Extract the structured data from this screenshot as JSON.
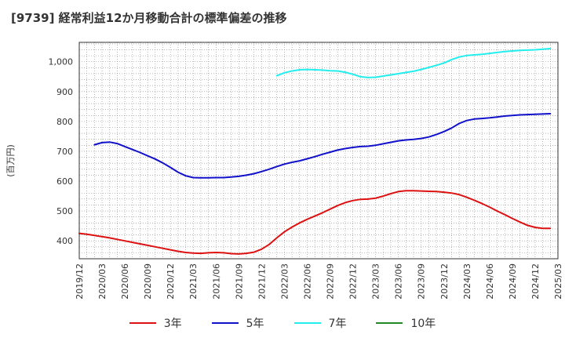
{
  "chart_data": {
    "type": "line",
    "title": "[9739]  経常利益12か月移動合計の標準偏差の推移",
    "ylabel": "(百万円)",
    "xlabel": "",
    "ylim": [
      340,
      1065
    ],
    "yticks": [
      400,
      500,
      600,
      700,
      800,
      900,
      1000
    ],
    "ytick_labels": [
      "400",
      "500",
      "600",
      "700",
      "800",
      "900",
      "1,000"
    ],
    "x_range": [
      "2019-12",
      "2025-03"
    ],
    "xtick_labels": [
      "2019/12",
      "2020/03",
      "2020/06",
      "2020/09",
      "2020/12",
      "2021/03",
      "2021/06",
      "2021/09",
      "2021/12",
      "2022/03",
      "2022/06",
      "2022/09",
      "2022/12",
      "2023/03",
      "2023/06",
      "2023/09",
      "2023/12",
      "2024/03",
      "2024/06",
      "2024/09",
      "2024/12",
      "2025/03"
    ],
    "grid": true,
    "legend_position": "bottom",
    "series": [
      {
        "name": "3年",
        "color": "#dd1111",
        "points": [
          [
            "2019-12",
            425
          ],
          [
            "2020-01",
            422
          ],
          [
            "2020-02",
            418
          ],
          [
            "2020-03",
            414
          ],
          [
            "2020-04",
            410
          ],
          [
            "2020-05",
            405
          ],
          [
            "2020-06",
            400
          ],
          [
            "2020-07",
            395
          ],
          [
            "2020-08",
            390
          ],
          [
            "2020-09",
            385
          ],
          [
            "2020-10",
            380
          ],
          [
            "2020-11",
            375
          ],
          [
            "2020-12",
            370
          ],
          [
            "2021-01",
            365
          ],
          [
            "2021-02",
            361
          ],
          [
            "2021-03",
            359
          ],
          [
            "2021-04",
            358
          ],
          [
            "2021-05",
            360
          ],
          [
            "2021-06",
            361
          ],
          [
            "2021-07",
            360
          ],
          [
            "2021-08",
            357
          ],
          [
            "2021-09",
            356
          ],
          [
            "2021-10",
            358
          ],
          [
            "2021-11",
            362
          ],
          [
            "2021-12",
            372
          ],
          [
            "2022-01",
            388
          ],
          [
            "2022-02",
            410
          ],
          [
            "2022-03",
            430
          ],
          [
            "2022-04",
            446
          ],
          [
            "2022-05",
            460
          ],
          [
            "2022-06",
            472
          ],
          [
            "2022-07",
            483
          ],
          [
            "2022-08",
            494
          ],
          [
            "2022-09",
            506
          ],
          [
            "2022-10",
            518
          ],
          [
            "2022-11",
            528
          ],
          [
            "2022-12",
            535
          ],
          [
            "2023-01",
            539
          ],
          [
            "2023-02",
            540
          ],
          [
            "2023-03",
            543
          ],
          [
            "2023-04",
            550
          ],
          [
            "2023-05",
            558
          ],
          [
            "2023-06",
            565
          ],
          [
            "2023-07",
            568
          ],
          [
            "2023-08",
            568
          ],
          [
            "2023-09",
            567
          ],
          [
            "2023-10",
            566
          ],
          [
            "2023-11",
            565
          ],
          [
            "2023-12",
            563
          ],
          [
            "2024-01",
            560
          ],
          [
            "2024-02",
            555
          ],
          [
            "2024-03",
            546
          ],
          [
            "2024-04",
            536
          ],
          [
            "2024-05",
            525
          ],
          [
            "2024-06",
            513
          ],
          [
            "2024-07",
            500
          ],
          [
            "2024-08",
            488
          ],
          [
            "2024-09",
            475
          ],
          [
            "2024-10",
            463
          ],
          [
            "2024-11",
            452
          ],
          [
            "2024-12",
            445
          ],
          [
            "2025-01",
            442
          ],
          [
            "2025-02",
            442
          ]
        ]
      },
      {
        "name": "5年",
        "color": "#1111cc",
        "points": [
          [
            "2020-02",
            722
          ],
          [
            "2020-03",
            729
          ],
          [
            "2020-04",
            731
          ],
          [
            "2020-05",
            726
          ],
          [
            "2020-06",
            716
          ],
          [
            "2020-07",
            706
          ],
          [
            "2020-08",
            696
          ],
          [
            "2020-09",
            685
          ],
          [
            "2020-10",
            674
          ],
          [
            "2020-11",
            661
          ],
          [
            "2020-12",
            646
          ],
          [
            "2021-01",
            630
          ],
          [
            "2021-02",
            618
          ],
          [
            "2021-03",
            612
          ],
          [
            "2021-04",
            611
          ],
          [
            "2021-05",
            611
          ],
          [
            "2021-06",
            612
          ],
          [
            "2021-07",
            612
          ],
          [
            "2021-08",
            614
          ],
          [
            "2021-09",
            616
          ],
          [
            "2021-10",
            620
          ],
          [
            "2021-11",
            625
          ],
          [
            "2021-12",
            632
          ],
          [
            "2022-01",
            640
          ],
          [
            "2022-02",
            649
          ],
          [
            "2022-03",
            657
          ],
          [
            "2022-04",
            663
          ],
          [
            "2022-05",
            668
          ],
          [
            "2022-06",
            675
          ],
          [
            "2022-07",
            682
          ],
          [
            "2022-08",
            690
          ],
          [
            "2022-09",
            697
          ],
          [
            "2022-10",
            704
          ],
          [
            "2022-11",
            709
          ],
          [
            "2022-12",
            713
          ],
          [
            "2023-01",
            716
          ],
          [
            "2023-02",
            717
          ],
          [
            "2023-03",
            720
          ],
          [
            "2023-04",
            725
          ],
          [
            "2023-05",
            730
          ],
          [
            "2023-06",
            735
          ],
          [
            "2023-07",
            738
          ],
          [
            "2023-08",
            740
          ],
          [
            "2023-09",
            743
          ],
          [
            "2023-10",
            748
          ],
          [
            "2023-11",
            756
          ],
          [
            "2023-12",
            766
          ],
          [
            "2024-01",
            778
          ],
          [
            "2024-02",
            793
          ],
          [
            "2024-03",
            803
          ],
          [
            "2024-04",
            808
          ],
          [
            "2024-05",
            810
          ],
          [
            "2024-06",
            812
          ],
          [
            "2024-07",
            815
          ],
          [
            "2024-08",
            818
          ],
          [
            "2024-09",
            820
          ],
          [
            "2024-10",
            822
          ],
          [
            "2024-11",
            823
          ],
          [
            "2024-12",
            824
          ],
          [
            "2025-01",
            825
          ],
          [
            "2025-02",
            826
          ]
        ]
      },
      {
        "name": "7年",
        "color": "#22eeee",
        "points": [
          [
            "2022-02",
            953
          ],
          [
            "2022-03",
            963
          ],
          [
            "2022-04",
            969
          ],
          [
            "2022-05",
            973
          ],
          [
            "2022-06",
            974
          ],
          [
            "2022-07",
            973
          ],
          [
            "2022-08",
            972
          ],
          [
            "2022-09",
            970
          ],
          [
            "2022-10",
            969
          ],
          [
            "2022-11",
            965
          ],
          [
            "2022-12",
            958
          ],
          [
            "2023-01",
            950
          ],
          [
            "2023-02",
            947
          ],
          [
            "2023-03",
            948
          ],
          [
            "2023-04",
            952
          ],
          [
            "2023-05",
            956
          ],
          [
            "2023-06",
            960
          ],
          [
            "2023-07",
            964
          ],
          [
            "2023-08",
            968
          ],
          [
            "2023-09",
            974
          ],
          [
            "2023-10",
            981
          ],
          [
            "2023-11",
            988
          ],
          [
            "2023-12",
            996
          ],
          [
            "2024-01",
            1007
          ],
          [
            "2024-02",
            1016
          ],
          [
            "2024-03",
            1021
          ],
          [
            "2024-04",
            1023
          ],
          [
            "2024-05",
            1025
          ],
          [
            "2024-06",
            1028
          ],
          [
            "2024-07",
            1031
          ],
          [
            "2024-08",
            1034
          ],
          [
            "2024-09",
            1036
          ],
          [
            "2024-10",
            1038
          ],
          [
            "2024-11",
            1039
          ],
          [
            "2024-12",
            1040
          ],
          [
            "2025-01",
            1042
          ],
          [
            "2025-02",
            1044
          ]
        ]
      },
      {
        "name": "10年",
        "color": "#228822",
        "points": []
      }
    ]
  }
}
